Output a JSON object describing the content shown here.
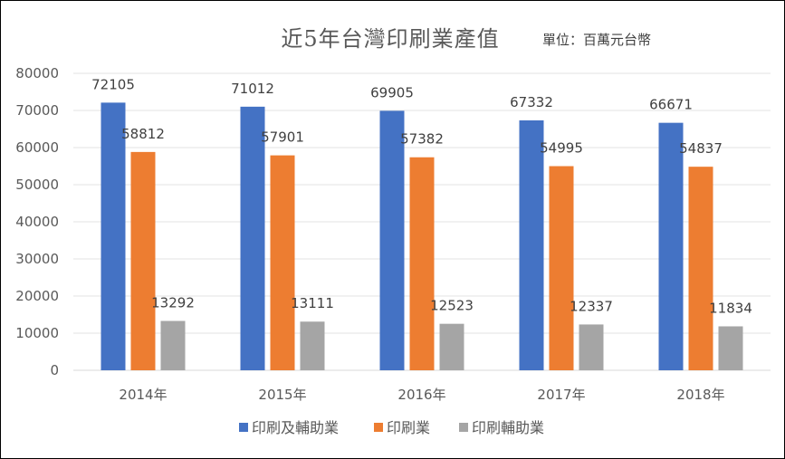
{
  "chart_data": {
    "type": "bar",
    "title": "近5年台灣印刷業產值",
    "unit_note": "單位：百萬元台幣",
    "categories": [
      "2014年",
      "2015年",
      "2016年",
      "2017年",
      "2018年"
    ],
    "series": [
      {
        "name": "印刷及輔助業",
        "color": "#4472C4",
        "values": [
          72105,
          71012,
          69905,
          67332,
          66671
        ]
      },
      {
        "name": "印刷業",
        "color": "#ED7D31",
        "values": [
          58812,
          57901,
          57382,
          54995,
          54837
        ]
      },
      {
        "name": "印刷輔助業",
        "color": "#A5A5A5",
        "values": [
          13292,
          13111,
          12523,
          12337,
          11834
        ]
      }
    ],
    "yticks": [
      0,
      10000,
      20000,
      30000,
      40000,
      50000,
      60000,
      70000,
      80000
    ],
    "ylim": [
      0,
      80000
    ],
    "grid": true,
    "legend_position": "bottom",
    "data_labels": true
  }
}
